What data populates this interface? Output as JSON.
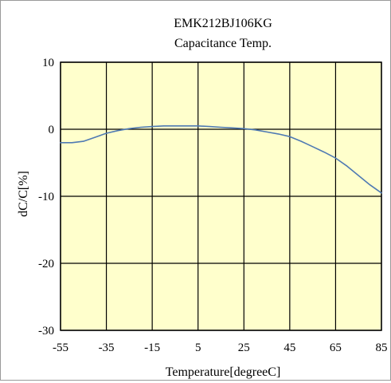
{
  "chart_data": {
    "type": "line",
    "title": "EMK212BJ106KG",
    "subtitle": "Capacitance Temp.",
    "xlabel": "Temperature[degreeC]",
    "ylabel": "dC/C[%]",
    "xlim": [
      -55,
      85
    ],
    "ylim": [
      -30,
      10
    ],
    "x_ticks": [
      -55,
      -35,
      -15,
      5,
      25,
      45,
      65,
      85
    ],
    "y_ticks": [
      10,
      0,
      -10,
      -20,
      -30
    ],
    "grid": true,
    "legend": "none",
    "colors": {
      "plot_background": "#ffffcc",
      "line": "#4f7ab3",
      "grid": "#000000",
      "zero_line": "#000000"
    },
    "series": [
      {
        "x": [
          -55,
          -50,
          -45,
          -40,
          -35,
          -30,
          -25,
          -20,
          -15,
          -10,
          -5,
          0,
          5,
          10,
          15,
          20,
          25,
          30,
          35,
          40,
          45,
          50,
          55,
          60,
          65,
          70,
          75,
          80,
          85
        ],
        "y": [
          -2.0,
          -2.0,
          -1.8,
          -1.2,
          -0.6,
          -0.2,
          0.1,
          0.3,
          0.4,
          0.5,
          0.5,
          0.5,
          0.5,
          0.4,
          0.3,
          0.2,
          0.1,
          -0.1,
          -0.4,
          -0.7,
          -1.1,
          -1.8,
          -2.6,
          -3.4,
          -4.3,
          -5.5,
          -6.9,
          -8.3,
          -9.5
        ]
      }
    ]
  }
}
